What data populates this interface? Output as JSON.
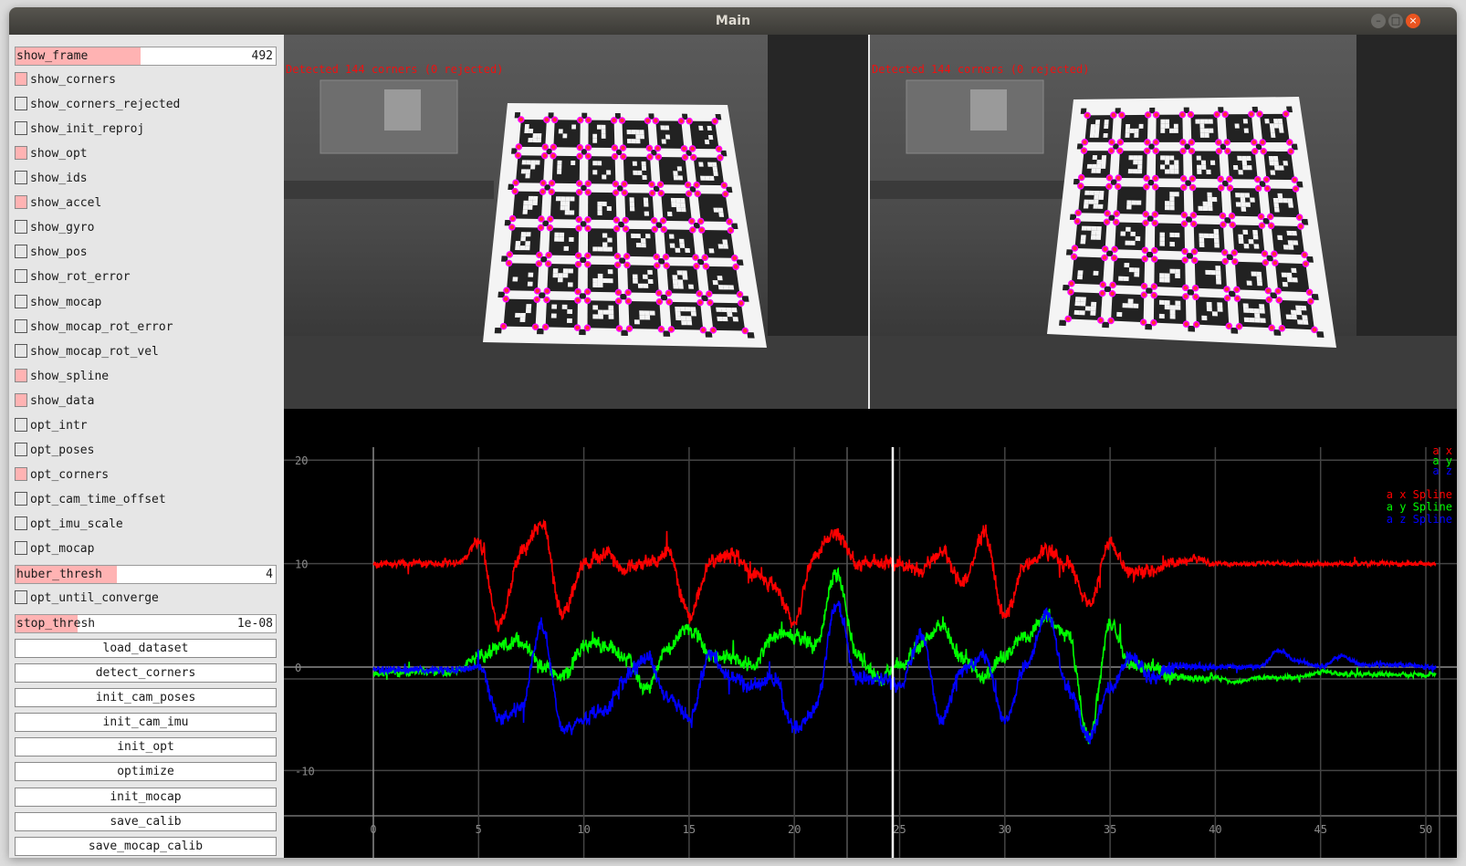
{
  "window": {
    "title": "Main",
    "controls": [
      "minimize",
      "maximize",
      "close"
    ]
  },
  "sidebar": {
    "items": [
      {
        "type": "slider",
        "label": "show_frame",
        "value": "492",
        "fill": 0.48
      },
      {
        "type": "checkbox",
        "label": "show_corners",
        "checked": true
      },
      {
        "type": "checkbox",
        "label": "show_corners_rejected",
        "checked": false
      },
      {
        "type": "checkbox",
        "label": "show_init_reproj",
        "checked": false
      },
      {
        "type": "checkbox",
        "label": "show_opt",
        "checked": true
      },
      {
        "type": "checkbox",
        "label": "show_ids",
        "checked": false
      },
      {
        "type": "checkbox",
        "label": "show_accel",
        "checked": true
      },
      {
        "type": "checkbox",
        "label": "show_gyro",
        "checked": false
      },
      {
        "type": "checkbox",
        "label": "show_pos",
        "checked": false
      },
      {
        "type": "checkbox",
        "label": "show_rot_error",
        "checked": false
      },
      {
        "type": "checkbox",
        "label": "show_mocap",
        "checked": false
      },
      {
        "type": "checkbox",
        "label": "show_mocap_rot_error",
        "checked": false
      },
      {
        "type": "checkbox",
        "label": "show_mocap_rot_vel",
        "checked": false
      },
      {
        "type": "checkbox",
        "label": "show_spline",
        "checked": true
      },
      {
        "type": "checkbox",
        "label": "show_data",
        "checked": true
      },
      {
        "type": "checkbox",
        "label": "opt_intr",
        "checked": false
      },
      {
        "type": "checkbox",
        "label": "opt_poses",
        "checked": false
      },
      {
        "type": "checkbox",
        "label": "opt_corners",
        "checked": true
      },
      {
        "type": "checkbox",
        "label": "opt_cam_time_offset",
        "checked": false
      },
      {
        "type": "checkbox",
        "label": "opt_imu_scale",
        "checked": false
      },
      {
        "type": "checkbox",
        "label": "opt_mocap",
        "checked": false
      },
      {
        "type": "slider",
        "label": "huber_thresh",
        "value": "4",
        "fill": 0.39
      },
      {
        "type": "checkbox",
        "label": "opt_until_converge",
        "checked": false
      },
      {
        "type": "slider",
        "label": "stop_thresh",
        "value": "1e-08",
        "fill": 0.24
      },
      {
        "type": "button",
        "label": "load_dataset"
      },
      {
        "type": "button",
        "label": "detect_corners"
      },
      {
        "type": "button",
        "label": "init_cam_poses"
      },
      {
        "type": "button",
        "label": "init_cam_imu"
      },
      {
        "type": "button",
        "label": "init_opt"
      },
      {
        "type": "button",
        "label": "optimize"
      },
      {
        "type": "button",
        "label": "init_mocap"
      },
      {
        "type": "button",
        "label": "save_calib"
      },
      {
        "type": "button",
        "label": "save_mocap_calib"
      }
    ]
  },
  "cameras": [
    {
      "overlay_text": "Detected 144 corners (0 rejected)"
    },
    {
      "overlay_text": "Detected 144 corners (0 rejected)"
    }
  ],
  "colors": {
    "accent_fill": "#ffb3b3",
    "overlay_text": "#ee1111",
    "corner_marker": "#ff00ff",
    "ax": "#ff0000",
    "ay": "#00ff00",
    "az": "#0000ff"
  },
  "chart_data": {
    "type": "line",
    "xlim": [
      0,
      51
    ],
    "ylim": [
      -14,
      22
    ],
    "xticks": [
      "0",
      "5",
      "10",
      "15",
      "20",
      "25",
      "30",
      "35",
      "40",
      "45",
      "50"
    ],
    "yticks": [
      "20",
      "10",
      "0",
      "-10"
    ],
    "current_time": 24.7,
    "grid": true,
    "legend_placement": "top-right",
    "legend": {
      "data": [
        "a x",
        "a y",
        "a z"
      ],
      "spline": [
        "a x Spline",
        "a y Spline",
        "a z Spline"
      ]
    },
    "t": [
      0,
      1,
      2,
      3,
      4,
      5,
      6,
      7,
      8,
      9,
      10,
      11,
      12,
      13,
      14,
      15,
      16,
      17,
      18,
      19,
      20,
      21,
      22,
      23,
      24,
      25,
      26,
      27,
      28,
      29,
      30,
      31,
      32,
      33,
      34,
      35,
      36,
      37,
      38,
      39,
      40,
      41,
      42,
      43,
      44,
      45,
      46,
      47,
      48,
      49,
      50,
      51
    ],
    "series": [
      {
        "name": "a x",
        "color": "#ff0000",
        "values": [
          10,
          10,
          10,
          10,
          10,
          12,
          4,
          11,
          14,
          5,
          10,
          11,
          9.5,
          10,
          11,
          5,
          10,
          11,
          9,
          8,
          4.5,
          11,
          13,
          10,
          10,
          10,
          9.5,
          11,
          8,
          13,
          5,
          10,
          11,
          10,
          6,
          12,
          9,
          9.5,
          10,
          10.5,
          10,
          10,
          10,
          10,
          10,
          10,
          10,
          10,
          10,
          10,
          10,
          10
        ]
      },
      {
        "name": "a y",
        "color": "#00ff00",
        "values": [
          -0.5,
          -0.5,
          -0.5,
          -0.5,
          -0.3,
          1,
          2,
          2.5,
          0,
          -1,
          2,
          2,
          1,
          -2,
          2,
          4,
          1,
          1,
          0,
          3,
          3,
          2,
          9,
          1,
          -1,
          0,
          2,
          4,
          1,
          -1,
          1,
          3,
          5,
          3,
          -7,
          4,
          0,
          0,
          -1,
          -1,
          -1,
          -1.5,
          -1,
          -1,
          -1,
          -0.5,
          -0.7,
          -0.7,
          -0.7,
          -0.7,
          -0.7,
          -0.7
        ]
      },
      {
        "name": "a z",
        "color": "#0000ff",
        "values": [
          -0.3,
          -0.3,
          -0.3,
          -0.3,
          -0.2,
          0,
          -5,
          -4,
          4,
          -6,
          -5,
          -4,
          -1,
          1,
          -3,
          -5,
          1,
          -1,
          -2,
          -1,
          -6,
          -4,
          6,
          -1,
          -1,
          -2,
          3,
          -5,
          0,
          1,
          -5,
          0,
          5,
          -2,
          -7,
          -2,
          1,
          -1,
          0,
          0,
          0,
          0,
          0,
          1.5,
          0.5,
          0,
          1,
          0.2,
          0.2,
          0.2,
          0,
          0
        ]
      }
    ]
  }
}
